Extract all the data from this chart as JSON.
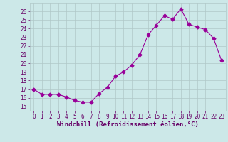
{
  "x": [
    0,
    1,
    2,
    3,
    4,
    5,
    6,
    7,
    8,
    9,
    10,
    11,
    12,
    13,
    14,
    15,
    16,
    17,
    18,
    19,
    20,
    21,
    22,
    23
  ],
  "y": [
    17.0,
    16.4,
    16.4,
    16.4,
    16.1,
    15.7,
    15.5,
    15.5,
    16.5,
    17.2,
    18.5,
    19.0,
    19.8,
    21.0,
    23.3,
    24.4,
    25.5,
    25.1,
    26.3,
    24.5,
    24.2,
    23.9,
    22.9,
    20.3
  ],
  "line_color": "#990099",
  "marker": "D",
  "marker_size": 2.5,
  "bg_color": "#cce8e8",
  "grid_color": "#b0c8c8",
  "xlabel": "Windchill (Refroidissement éolien,°C)",
  "ylabel": "",
  "title": "",
  "xlim": [
    -0.5,
    23.5
  ],
  "ylim": [
    14.5,
    27.0
  ],
  "xticks": [
    0,
    1,
    2,
    3,
    4,
    5,
    6,
    7,
    8,
    9,
    10,
    11,
    12,
    13,
    14,
    15,
    16,
    17,
    18,
    19,
    20,
    21,
    22,
    23
  ],
  "yticks": [
    15,
    16,
    17,
    18,
    19,
    20,
    21,
    22,
    23,
    24,
    25,
    26
  ],
  "font_color": "#660066",
  "tick_fontsize": 5.5,
  "xlabel_fontsize": 6.5
}
